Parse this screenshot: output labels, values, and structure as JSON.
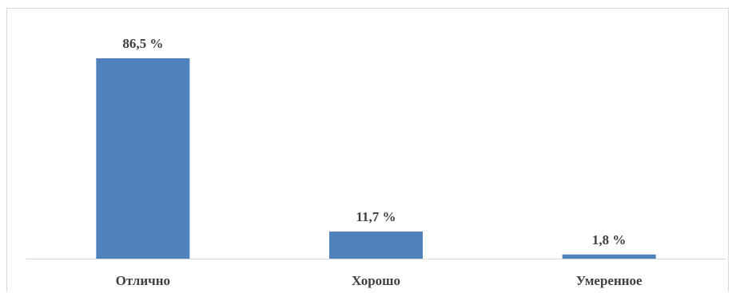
{
  "chart_data": {
    "type": "bar",
    "categories": [
      "Отлично",
      "Хорошо",
      "Умеренное"
    ],
    "values": [
      86.5,
      11.7,
      1.8
    ],
    "data_labels": [
      "86,5 %",
      "11,7 %",
      "1,8 %"
    ],
    "title": "",
    "xlabel": "",
    "ylabel": "",
    "ylim": [
      0,
      100
    ],
    "grid": false,
    "legend": "none",
    "bar_color": "#4f81bd",
    "axis_color": "#d9d9d9",
    "label_color": "#404040"
  }
}
